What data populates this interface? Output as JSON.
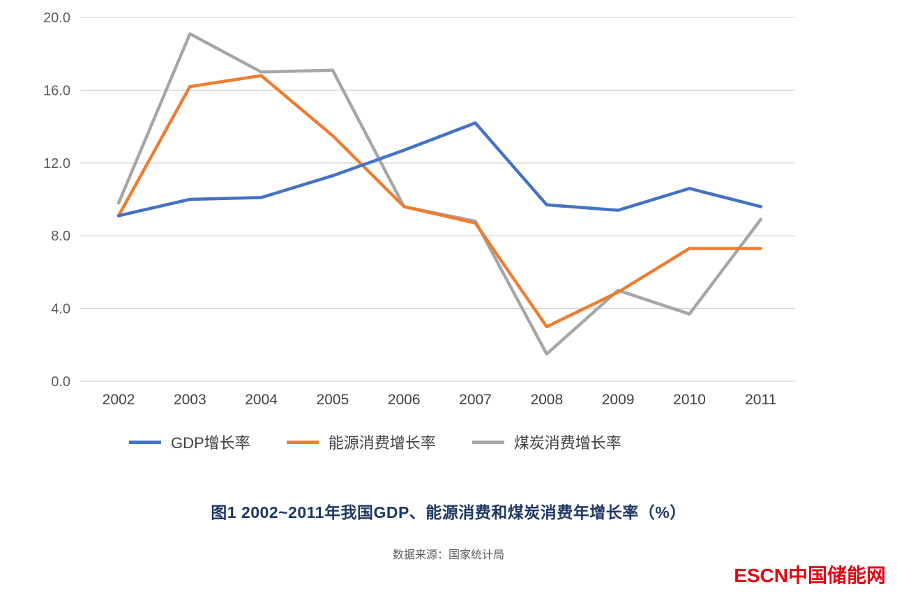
{
  "chart_data": {
    "type": "line",
    "title": "图1  2002~2011年我国GDP、能源消费和煤炭消费年增长率（%）",
    "categories": [
      "2002",
      "2003",
      "2004",
      "2005",
      "2006",
      "2007",
      "2008",
      "2009",
      "2010",
      "2011"
    ],
    "series": [
      {
        "name": "GDP增长率",
        "color": "#4472C4",
        "values": [
          9.1,
          10.0,
          10.1,
          11.3,
          12.7,
          14.2,
          9.7,
          9.4,
          10.6,
          9.6
        ]
      },
      {
        "name": "能源消费增长率",
        "color": "#ED7D31",
        "values": [
          9.1,
          16.2,
          16.8,
          13.5,
          9.6,
          8.7,
          3.0,
          4.9,
          7.3,
          7.3
        ]
      },
      {
        "name": "煤炭消费增长率",
        "color": "#A6A6A6",
        "values": [
          9.8,
          19.1,
          17.0,
          17.1,
          9.6,
          8.8,
          1.5,
          5.0,
          3.7,
          8.9
        ]
      }
    ],
    "xlabel": "",
    "ylabel": "",
    "ylim": [
      0,
      20
    ],
    "y_ticks": [
      0,
      4,
      8,
      12,
      16,
      20
    ],
    "y_tick_labels": [
      "0.0",
      "4.0",
      "8.0",
      "12.0",
      "16.0",
      "20.0"
    ],
    "grid": true,
    "legend_position": "bottom"
  },
  "caption": {
    "title": "图1  2002~2011年我国GDP、能源消费和煤炭消费年增长率（%）",
    "source": "数据来源：国家统计局"
  },
  "logo": {
    "escn": "ESCN",
    "site": "中国储能网"
  },
  "colors": {
    "caption_title": "#1F3864",
    "logo": "#E60012",
    "gridline": "#D6D6D6",
    "axis_tick_text": "#595959",
    "x_tick_text": "#404040"
  }
}
